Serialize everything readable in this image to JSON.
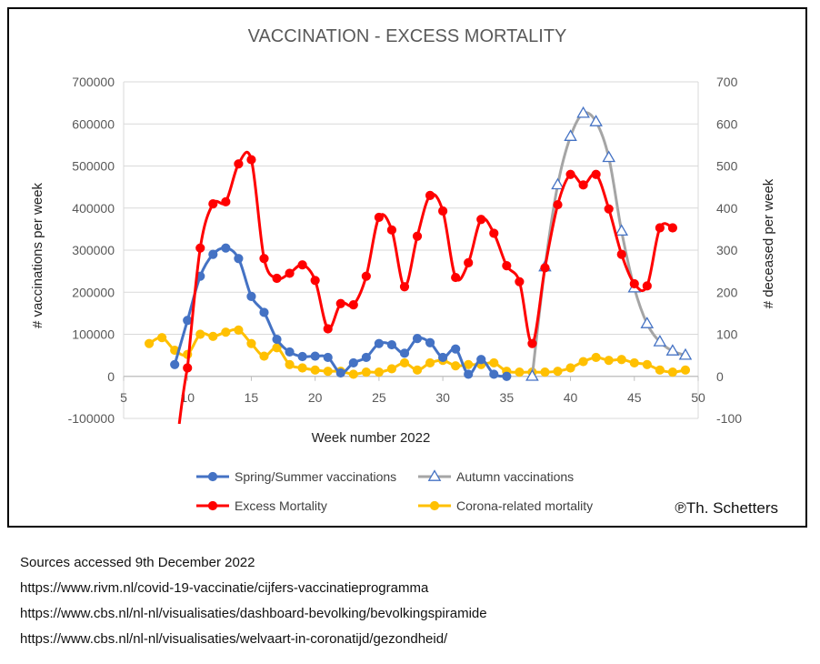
{
  "chart_data": {
    "type": "line",
    "title": "VACCINATION - EXCESS MORTALITY",
    "xlabel": "Week number 2022",
    "ylabel_left": "# vaccinations per week",
    "ylabel_right": "# deceased per week",
    "xlim": [
      5,
      50
    ],
    "x_ticks": [
      5,
      10,
      15,
      20,
      25,
      30,
      35,
      40,
      45,
      50
    ],
    "ylim_left": [
      -100000,
      700000
    ],
    "y_ticks_left": [
      -100000,
      0,
      100000,
      200000,
      300000,
      400000,
      500000,
      600000,
      700000
    ],
    "ylim_right": [
      -100,
      700
    ],
    "y_ticks_right": [
      -100,
      0,
      100,
      200,
      300,
      400,
      500,
      600,
      700
    ],
    "legend_position": "bottom",
    "series": [
      {
        "name": "Spring/Summer vaccinations",
        "axis": "left",
        "color": "#4472C4",
        "marker": "circle",
        "smooth": true,
        "x": [
          9,
          10,
          11,
          12,
          13,
          14,
          15,
          16,
          17,
          18,
          19,
          20,
          21,
          22,
          23,
          24,
          25,
          26,
          27,
          28,
          29,
          30,
          31,
          32,
          33,
          34,
          35
        ],
        "values": [
          28000,
          133000,
          238000,
          290000,
          305000,
          280000,
          190000,
          152000,
          88000,
          58000,
          47000,
          48000,
          45000,
          8000,
          32000,
          45000,
          78000,
          75000,
          55000,
          90000,
          80000,
          45000,
          65000,
          5000,
          40000,
          5000,
          0
        ]
      },
      {
        "name": "Autumn vaccinations",
        "axis": "left",
        "color": "#A5A5A5",
        "marker": "triangle",
        "smooth": true,
        "x": [
          37,
          38,
          39,
          40,
          41,
          42,
          43,
          44,
          45,
          46,
          47,
          48,
          49
        ],
        "values": [
          0,
          260000,
          455000,
          570000,
          625000,
          605000,
          520000,
          345000,
          210000,
          125000,
          82000,
          60000,
          50000
        ]
      },
      {
        "name": "Excess Mortality",
        "axis": "right",
        "color": "#FF0000",
        "marker": "circle",
        "smooth": true,
        "x": [
          10,
          11,
          12,
          13,
          14,
          15,
          16,
          17,
          18,
          19,
          20,
          21,
          22,
          23,
          24,
          25,
          26,
          27,
          28,
          29,
          30,
          31,
          32,
          33,
          34,
          35,
          36,
          37,
          38,
          39,
          40,
          41,
          42,
          43,
          44,
          45,
          46,
          47,
          48
        ],
        "values": [
          20,
          305,
          410,
          415,
          505,
          515,
          280,
          233,
          245,
          265,
          228,
          113,
          173,
          170,
          238,
          378,
          348,
          213,
          333,
          430,
          393,
          235,
          270,
          373,
          340,
          263,
          225,
          78,
          258,
          408,
          480,
          455,
          480,
          398,
          290,
          220,
          215,
          353,
          353
        ],
        "note": "line extends below -100 before week 10"
      },
      {
        "name": "Corona-related mortality",
        "axis": "right",
        "color": "#FFC000",
        "marker": "circle",
        "smooth": true,
        "x": [
          7,
          8,
          9,
          10,
          11,
          12,
          13,
          14,
          15,
          16,
          17,
          18,
          19,
          20,
          21,
          22,
          23,
          24,
          25,
          26,
          27,
          28,
          29,
          30,
          31,
          32,
          33,
          34,
          35,
          36,
          37,
          38,
          39,
          40,
          41,
          42,
          43,
          44,
          45,
          46,
          47,
          48,
          49
        ],
        "values": [
          78,
          92,
          62,
          52,
          100,
          95,
          105,
          110,
          78,
          48,
          68,
          28,
          20,
          15,
          12,
          12,
          5,
          10,
          10,
          18,
          32,
          15,
          32,
          38,
          25,
          28,
          28,
          32,
          12,
          10,
          10,
          10,
          12,
          20,
          35,
          45,
          38,
          40,
          32,
          28,
          15,
          10,
          15
        ]
      }
    ],
    "credit": "℗Th. Schetters"
  },
  "sources": {
    "heading": "Sources accessed 9th  December 2022",
    "links": [
      "https://www.rivm.nl/covid-19-vaccinatie/cijfers-vaccinatieprogramma",
      "https://www.cbs.nl/nl-nl/visualisaties/dashboard-bevolking/bevolkingspiramide",
      "https://www.cbs.nl/nl-nl/visualisaties/welvaart-in-coronatijd/gezondheid/"
    ]
  }
}
